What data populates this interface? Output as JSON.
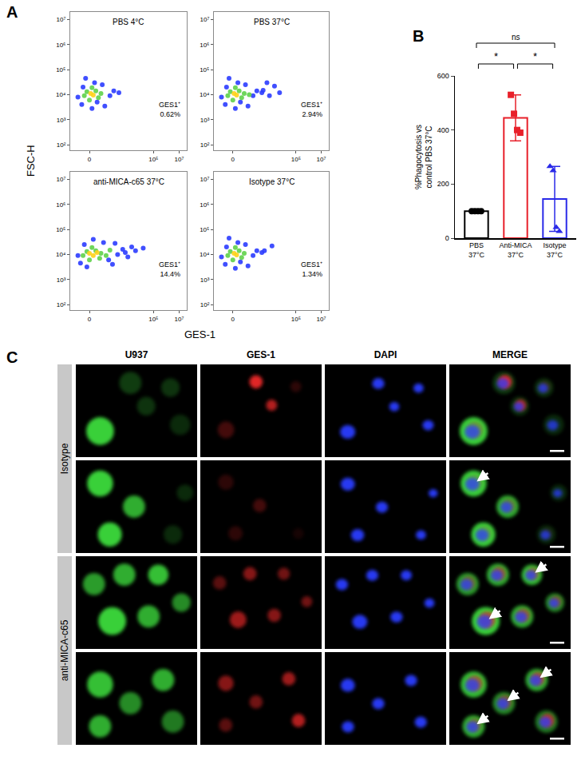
{
  "panel_A": {
    "letter": "A",
    "xlabel": "GES-1",
    "ylabel": "FSC-H"
  },
  "chart_data": [
    {
      "panel": "A",
      "type": "scatter",
      "title": "PBS 4°C",
      "log": "y",
      "xlim": [
        -1.5,
        7.6
      ],
      "xticks": [
        0,
        {
          "value": 5,
          "label": "10⁵"
        },
        {
          "value": 7,
          "label": "10⁷"
        }
      ],
      "ylim": [
        60,
        20000000
      ],
      "yticks": [
        {
          "value": 100,
          "label": "10²"
        },
        {
          "value": 1000,
          "label": "10³"
        },
        {
          "value": 10000,
          "label": "10⁴"
        },
        {
          "value": 100000,
          "label": "10⁵"
        },
        {
          "value": 1000000,
          "label": "10⁶"
        },
        {
          "value": 10000000,
          "label": "10⁷"
        }
      ],
      "series": [
        {
          "color": "#2b3cff",
          "x": [
            -0.9,
            -0.6,
            -0.5,
            1.2,
            1.6,
            1.9,
            0.4,
            0.2,
            -0.3,
            2.3,
            1.0,
            0.6
          ],
          "y": [
            8000,
            4000,
            20000,
            3500,
            9000,
            14000,
            30000,
            2800,
            45000,
            12000,
            25000,
            5000
          ]
        },
        {
          "color": "#5fd24a",
          "x": [
            -0.4,
            0.0,
            0.5,
            0.9,
            0.2,
            -0.2,
            0.7
          ],
          "y": [
            9000,
            6000,
            14000,
            11000,
            19000,
            13000,
            7500
          ]
        },
        {
          "color": "#ffd21a",
          "x": [
            0.1,
            0.3
          ],
          "y": [
            11000,
            9500
          ]
        }
      ],
      "gate": {
        "x": [
          0.5,
          7.4
        ],
        "y": [
          800,
          4000000
        ],
        "label": "GES1⁺",
        "value": 0.62,
        "value_label": "0.62%"
      }
    },
    {
      "panel": "A",
      "type": "scatter",
      "title": "PBS 37°C",
      "log": "y",
      "xlim": [
        -1.5,
        7.6
      ],
      "xticks": [
        0,
        {
          "value": 5,
          "label": "10⁵"
        },
        {
          "value": 7,
          "label": "10⁷"
        }
      ],
      "ylim": [
        60,
        20000000
      ],
      "yticks": [
        {
          "value": 100,
          "label": "10²"
        },
        {
          "value": 1000,
          "label": "10³"
        },
        {
          "value": 10000,
          "label": "10⁴"
        },
        {
          "value": 100000,
          "label": "10⁵"
        },
        {
          "value": 1000000,
          "label": "10⁶"
        },
        {
          "value": 10000000,
          "label": "10⁷"
        }
      ],
      "series": [
        {
          "color": "#2b3cff",
          "x": [
            -0.9,
            -0.6,
            -0.5,
            1.2,
            1.6,
            1.9,
            0.4,
            0.2,
            -0.3,
            2.3,
            1.0,
            0.6,
            2.4,
            2.9,
            3.3,
            2.7,
            3.7
          ],
          "y": [
            8000,
            4000,
            20000,
            3500,
            9000,
            14000,
            30000,
            2800,
            45000,
            12000,
            25000,
            5000,
            15000,
            9000,
            22000,
            30000,
            12000
          ]
        },
        {
          "color": "#5fd24a",
          "x": [
            -0.4,
            0.0,
            0.5,
            0.9,
            0.2,
            -0.2,
            0.7,
            1.3
          ],
          "y": [
            9000,
            6000,
            14000,
            11000,
            19000,
            13000,
            7500,
            10000
          ]
        },
        {
          "color": "#ffd21a",
          "x": [
            0.1,
            0.3
          ],
          "y": [
            11000,
            9500
          ]
        }
      ],
      "gate": {
        "x": [
          0.5,
          7.4
        ],
        "y": [
          800,
          4000000
        ],
        "label": "GES1⁺",
        "value": 2.94,
        "value_label": "2.94%"
      }
    },
    {
      "panel": "A",
      "type": "scatter",
      "title": "anti-MICA-c65 37°C",
      "log": "y",
      "xlim": [
        -1.5,
        7.6
      ],
      "xticks": [
        0,
        {
          "value": 5,
          "label": "10⁵"
        },
        {
          "value": 7,
          "label": "10⁷"
        }
      ],
      "ylim": [
        60,
        20000000
      ],
      "yticks": [
        {
          "value": 100,
          "label": "10²"
        },
        {
          "value": 1000,
          "label": "10³"
        },
        {
          "value": 10000,
          "label": "10⁴"
        },
        {
          "value": 100000,
          "label": "10⁵"
        },
        {
          "value": 1000000,
          "label": "10⁶"
        },
        {
          "value": 10000000,
          "label": "10⁷"
        }
      ],
      "series": [
        {
          "color": "#2b3cff",
          "x": [
            -0.9,
            -0.7,
            -0.4,
            1.8,
            2.2,
            2.6,
            3.0,
            3.3,
            2.0,
            2.8,
            3.6,
            0.3,
            1.1,
            -0.2,
            1.5,
            4.2
          ],
          "y": [
            9000,
            4500,
            25000,
            4000,
            10000,
            16000,
            8000,
            20000,
            28000,
            12000,
            14000,
            40000,
            30000,
            3200,
            6000,
            18000
          ]
        },
        {
          "color": "#5fd24a",
          "x": [
            -0.5,
            0.0,
            0.5,
            0.9,
            1.3,
            0.2,
            -0.2,
            0.8,
            1.6
          ],
          "y": [
            9000,
            6000,
            14000,
            11000,
            9000,
            19000,
            13000,
            7000,
            15000
          ]
        },
        {
          "color": "#ffd21a",
          "x": [
            0.0,
            0.3,
            0.6
          ],
          "y": [
            11000,
            9000,
            12000
          ]
        }
      ],
      "gate": {
        "x": [
          0.5,
          7.4
        ],
        "y": [
          800,
          4000000
        ],
        "label": "GES1⁺",
        "value": 14.4,
        "value_label": "14.4%"
      }
    },
    {
      "panel": "A",
      "type": "scatter",
      "title": "Isotype 37°C",
      "log": "y",
      "xlim": [
        -1.5,
        7.6
      ],
      "xticks": [
        0,
        {
          "value": 5,
          "label": "10⁵"
        },
        {
          "value": 7,
          "label": "10⁷"
        }
      ],
      "ylim": [
        60,
        20000000
      ],
      "yticks": [
        {
          "value": 100,
          "label": "10²"
        },
        {
          "value": 1000,
          "label": "10³"
        },
        {
          "value": 10000,
          "label": "10⁴"
        },
        {
          "value": 100000,
          "label": "10⁵"
        },
        {
          "value": 1000000,
          "label": "10⁶"
        },
        {
          "value": 10000000,
          "label": "10⁷"
        }
      ],
      "series": [
        {
          "color": "#2b3cff",
          "x": [
            -0.9,
            -0.6,
            -0.5,
            1.2,
            1.6,
            1.9,
            0.4,
            0.2,
            -0.3,
            2.3,
            1.0,
            0.6,
            2.5,
            3.1
          ],
          "y": [
            8000,
            4000,
            20000,
            3500,
            9000,
            14000,
            30000,
            2800,
            45000,
            12000,
            25000,
            5000,
            14000,
            22000
          ]
        },
        {
          "color": "#5fd24a",
          "x": [
            -0.4,
            0.0,
            0.5,
            0.9,
            0.2,
            -0.2,
            0.7
          ],
          "y": [
            9000,
            6000,
            14000,
            11000,
            19000,
            13000,
            7500
          ]
        },
        {
          "color": "#ffd21a",
          "x": [
            0.1,
            0.3
          ],
          "y": [
            11000,
            9500
          ]
        }
      ],
      "gate": {
        "x": [
          0.5,
          7.4
        ],
        "y": [
          800,
          4000000
        ],
        "label": "GES1⁺",
        "value": 1.34,
        "value_label": "1.34%"
      }
    },
    {
      "panel": "B",
      "type": "bar",
      "ylabel": "%Phagocytosis vs control PBS 37°C",
      "categories": [
        "PBS 37°C",
        "Anti-MICA 37°C",
        "Isotype 37°C"
      ],
      "values": [
        100,
        445,
        145
      ],
      "errors": [
        0,
        85,
        120
      ],
      "colors": [
        "#000000",
        "#e8202a",
        "#2a2ae8"
      ],
      "markers": [
        "circle",
        "square",
        "triangle-up"
      ],
      "points": [
        [
          100,
          100,
          100,
          100
        ],
        [
          530,
          460,
          400,
          390
        ],
        [
          265,
          250,
          40,
          25
        ]
      ],
      "ylim": [
        0,
        600
      ],
      "yticks": [
        0,
        200,
        400,
        600
      ],
      "comparisons": [
        {
          "between": [
            0,
            1
          ],
          "label": "*"
        },
        {
          "between": [
            1,
            2
          ],
          "label": "*"
        },
        {
          "between": [
            0,
            2
          ],
          "label": "ns"
        }
      ]
    }
  ],
  "panel_C": {
    "letter": "C",
    "columns": [
      "U937",
      "GES-1",
      "DAPI",
      "MERGE"
    ],
    "groups": [
      "Isotype",
      "anti-MICA-c65"
    ]
  }
}
